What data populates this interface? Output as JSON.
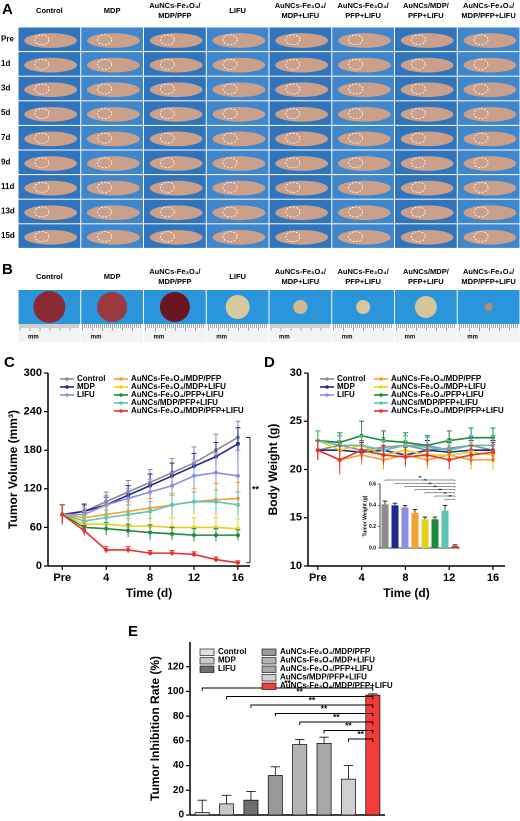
{
  "panel_a": {
    "label": "A",
    "columns": [
      [
        "Control"
      ],
      [
        "MDP"
      ],
      [
        "AuNCs-Fe₃O₄/",
        "MDP/PFP"
      ],
      [
        "LIFU"
      ],
      [
        "AuNCs-Fe₃O₄/",
        "MDP+LIFU"
      ],
      [
        "AuNCs-Fe₃O₄/",
        "PFP+LIFU"
      ],
      [
        "AuNCs/MDP/",
        "PFP+LIFU"
      ],
      [
        "AuNCs-Fe₃O₄/",
        "MDP/PFP+LIFU"
      ]
    ],
    "rows": [
      "Pre",
      "1d",
      "3d",
      "5d",
      "7d",
      "9d",
      "11d",
      "13d",
      "15d"
    ]
  },
  "panel_b": {
    "label": "B",
    "columns": [
      [
        "Control"
      ],
      [
        "MDP"
      ],
      [
        "AuNCs-Fe₃O₄/",
        "MDP/PFP"
      ],
      [
        "LIFU"
      ],
      [
        "AuNCs-Fe₃O₄/",
        "MDP+LIFU"
      ],
      [
        "AuNCs-Fe₃O₄/",
        "PFP+LIFU"
      ],
      [
        "AuNCs/MDP/",
        "PFP+LIFU"
      ],
      [
        "AuNCs-Fe₃O₄/",
        "MDP/PFP+LIFU"
      ]
    ],
    "scale_unit": "mm"
  },
  "chart_data": [
    {
      "type": "line",
      "panel": "C",
      "xlabel": "Time (d)",
      "ylabel": "Tumor Volume (mm³)",
      "annotation": "**",
      "x": [
        0,
        2,
        4,
        6,
        8,
        10,
        12,
        14,
        16
      ],
      "xlim": [
        -1.3,
        17.1
      ],
      "xticks": [
        {
          "value": 0,
          "label": "Pre"
        },
        4,
        8,
        12,
        16
      ],
      "ylim": [
        0,
        300
      ],
      "yticks": [
        0,
        60,
        120,
        180,
        240,
        300
      ],
      "series": [
        {
          "name": "Control",
          "color": "#8c8c8c",
          "values": [
            80,
            85,
            100,
            115,
            130,
            145,
            160,
            180,
            200
          ],
          "errors": [
            15,
            12,
            15,
            18,
            20,
            22,
            25,
            25,
            25
          ]
        },
        {
          "name": "MDP",
          "color": "#1f2a8c",
          "values": [
            80,
            85,
            95,
            110,
            125,
            140,
            155,
            170,
            190
          ],
          "errors": [
            15,
            10,
            12,
            15,
            18,
            20,
            20,
            22,
            25
          ]
        },
        {
          "name": "LIFU",
          "color": "#8e8ee0",
          "values": [
            80,
            80,
            95,
            105,
            115,
            125,
            140,
            145,
            140
          ],
          "errors": [
            15,
            10,
            15,
            15,
            20,
            20,
            25,
            30,
            40
          ]
        },
        {
          "name": "AuNCs-Fe₃O₄/MDP/PFP",
          "color": "#f5a031",
          "values": [
            80,
            75,
            80,
            85,
            90,
            95,
            100,
            103,
            105
          ],
          "errors": [
            15,
            10,
            12,
            15,
            15,
            18,
            20,
            25,
            25
          ]
        },
        {
          "name": "AuNCs-Fe₃O₄/MDP+LIFU",
          "color": "#e6d020",
          "values": [
            80,
            65,
            65,
            62,
            62,
            60,
            60,
            60,
            58
          ],
          "errors": [
            15,
            12,
            10,
            12,
            12,
            15,
            15,
            15,
            15
          ]
        },
        {
          "name": "AuNCs-Fe₃O₄/PFP+LIFU",
          "color": "#1e8a3c",
          "values": [
            80,
            60,
            58,
            55,
            52,
            50,
            48,
            48,
            48
          ],
          "errors": [
            15,
            10,
            10,
            10,
            12,
            10,
            10,
            10,
            8
          ]
        },
        {
          "name": "AuNCs/MDP/PFP+LIFU",
          "color": "#5fc4b0",
          "values": [
            80,
            70,
            75,
            80,
            85,
            95,
            100,
            100,
            95
          ],
          "errors": [
            15,
            10,
            12,
            15,
            15,
            15,
            15,
            18,
            20
          ]
        },
        {
          "name": "AuNCs-Fe₃O₄/MDP/PFP+LIFU",
          "color": "#e8312f",
          "values": [
            80,
            55,
            25,
            25,
            20,
            20,
            18,
            10,
            5
          ],
          "errors": [
            15,
            8,
            5,
            5,
            4,
            4,
            4,
            4,
            3
          ]
        }
      ]
    },
    {
      "type": "line",
      "panel": "D",
      "xlabel": "Time (d)",
      "ylabel": "Body Weight (g)",
      "x": [
        0,
        2,
        4,
        6,
        8,
        10,
        12,
        14,
        16
      ],
      "xlim": [
        -0.9,
        17.1
      ],
      "xticks": [
        {
          "value": 0,
          "label": "Pre"
        },
        4,
        8,
        12,
        16
      ],
      "ylim": [
        10,
        30
      ],
      "yticks": [
        10,
        15,
        20,
        25,
        30
      ],
      "series": [
        {
          "name": "Control",
          "color": "#8c8c8c",
          "values": [
            22,
            22.5,
            22,
            22.3,
            22.5,
            22,
            22.2,
            22.5,
            22
          ],
          "errors": [
            1,
            1,
            1.5,
            1,
            1,
            1,
            1,
            1,
            1
          ]
        },
        {
          "name": "MDP",
          "color": "#1f2a8c",
          "values": [
            22,
            22,
            21.8,
            22,
            21.5,
            22,
            21.8,
            22,
            22
          ],
          "errors": [
            1,
            1,
            1,
            1,
            1,
            1,
            1,
            1,
            1
          ]
        },
        {
          "name": "LIFU",
          "color": "#8e8ee0",
          "values": [
            23,
            22.5,
            22.5,
            22,
            22.5,
            22.5,
            22,
            22.5,
            22.5
          ],
          "errors": [
            1,
            1,
            1,
            1,
            1,
            1,
            1,
            1,
            1
          ]
        },
        {
          "name": "AuNCs-Fe₃O₄/MDP/PFP",
          "color": "#f5a031",
          "values": [
            22,
            21,
            21.5,
            21,
            21.5,
            21,
            21.5,
            21,
            21
          ],
          "errors": [
            1,
            1,
            1,
            1,
            1,
            1,
            1,
            1,
            1
          ]
        },
        {
          "name": "AuNCs-Fe₃O₄/MDP+LIFU",
          "color": "#e6d020",
          "values": [
            23,
            22,
            22.5,
            21.5,
            22,
            21.5,
            21.5,
            21.8,
            21.5
          ],
          "errors": [
            1,
            1,
            1,
            1,
            1,
            1,
            1,
            1,
            1
          ]
        },
        {
          "name": "AuNCs-Fe₃O₄/PFP+LIFU",
          "color": "#1e8a3c",
          "values": [
            23,
            22.8,
            23.5,
            23,
            22.8,
            22.5,
            23,
            23.3,
            23.3
          ],
          "errors": [
            1,
            1,
            1.5,
            1,
            1,
            1,
            1,
            1,
            1
          ]
        },
        {
          "name": "AuNCs/MDP/PFP+LIFU",
          "color": "#5fc4b0",
          "values": [
            23,
            22.5,
            22.5,
            22,
            22.5,
            22.3,
            22,
            22.5,
            22.5
          ],
          "errors": [
            1,
            1,
            1,
            1,
            1,
            1,
            1,
            1,
            1
          ]
        },
        {
          "name": "AuNCs-Fe₃O₄/MDP/PFP+LIFU",
          "color": "#e8312f",
          "values": [
            22,
            21,
            22,
            21.5,
            21.3,
            21.5,
            21,
            21.5,
            21.8
          ],
          "errors": [
            1,
            1.5,
            1,
            1,
            1,
            1,
            1,
            1,
            1
          ]
        }
      ]
    },
    {
      "type": "bar",
      "ylabel": "Tumor Weight (g)",
      "annotation": "**",
      "categories": [
        null,
        null,
        null,
        null,
        null,
        null,
        null,
        null
      ],
      "values": [
        0.41,
        0.4,
        0.38,
        0.33,
        0.27,
        0.27,
        0.35,
        0.02
      ],
      "errors": [
        0.03,
        0.02,
        0.02,
        0.03,
        0.02,
        0.02,
        0.05,
        0.01
      ],
      "colors": [
        "#8c8c8c",
        "#1f2a8c",
        "#8e8ee0",
        "#f5a031",
        "#e6d020",
        "#1e8a3c",
        "#5fc4b0",
        "#e8312f"
      ],
      "ylim": [
        0,
        0.6
      ],
      "yticks": [
        {
          "value": 0,
          "label": "0.0"
        },
        {
          "value": 0.2,
          "label": "0.2"
        },
        {
          "value": 0.4,
          "label": "0.4"
        },
        {
          "value": 0.6,
          "label": "0.6"
        }
      ]
    },
    {
      "type": "bar",
      "panel": "E",
      "ylabel": "Tumor Inhibition Rate (%)",
      "annotation": "**",
      "categories": [
        null,
        null,
        null,
        null,
        null,
        null,
        null,
        null
      ],
      "names": [
        "Control",
        "MDP",
        "LIFU",
        "AuNCs-Fe₃O₄/MDP/PFP",
        "AuNCs-Fe₃O₄/MDP+LIFU",
        "AuNCs-Fe₃O₄/PFP+LIFU",
        "AuNCs/MDP/PFP+LIFU",
        "AuNCs-Fe₃O₄/MDP/PFP+LIFU"
      ],
      "values": [
        2,
        9,
        12,
        32,
        57,
        58,
        29,
        97
      ],
      "errors": [
        10,
        7,
        7,
        7,
        4,
        5,
        11,
        1
      ],
      "colors": [
        "#e0e0e0",
        "#c8c8c8",
        "#6e6e6e",
        "#9a9a9a",
        "#b4b4b4",
        "#a8a8a8",
        "#d0d0d0",
        "#f23c3c"
      ],
      "ylim": [
        0,
        140
      ],
      "yticks": [
        0,
        20,
        40,
        60,
        80,
        100,
        120
      ]
    }
  ]
}
